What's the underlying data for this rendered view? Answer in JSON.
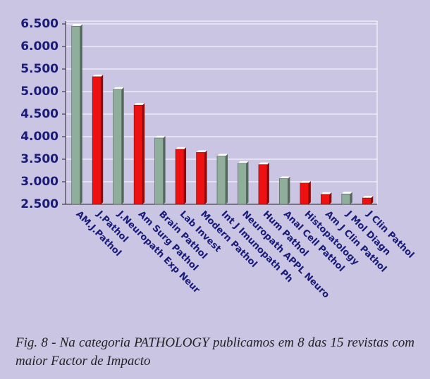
{
  "chart_data": {
    "type": "bar",
    "categories": [
      "AM.J.Pathol",
      "J.Pathol",
      "J.Neuropath Exp Neur",
      "Am Surg Pathol",
      "Brain Pathol",
      "Lab Invest",
      "Modern Pathol",
      "Int J Imunopath Ph",
      "Neuropath APPL Neuro",
      "Hum Pathol",
      "Anal Cell Pathol",
      "Histopatology",
      "Am J Clin Pathol",
      "J Mol Diagn",
      "J Clin Pathol"
    ],
    "values": [
      6.45,
      5.33,
      5.05,
      4.7,
      3.97,
      3.72,
      3.65,
      3.57,
      3.41,
      3.38,
      3.07,
      2.97,
      2.72,
      2.73,
      2.64
    ],
    "colors": [
      "#8fae9c",
      "#ee1111",
      "#8fae9c",
      "#ee1111",
      "#8fae9c",
      "#ee1111",
      "#ee1111",
      "#8fae9c",
      "#8fae9c",
      "#ee1111",
      "#8fae9c",
      "#ee1111",
      "#ee1111",
      "#8fae9c",
      "#ee1111"
    ],
    "ylim": [
      2.5,
      6.5
    ],
    "yticks": [
      {
        "value": 2.5,
        "label": "2.500"
      },
      {
        "value": 3,
        "label": "3.000"
      },
      {
        "value": 3.5,
        "label": "3.500"
      },
      {
        "value": 4,
        "label": "4.000"
      },
      {
        "value": 4.5,
        "label": "4.500"
      },
      {
        "value": 5,
        "label": "5.000"
      },
      {
        "value": 5.5,
        "label": "5.500"
      },
      {
        "value": 6,
        "label": "6.000"
      },
      {
        "value": 6.5,
        "label": "6.500"
      }
    ],
    "grid": true,
    "caption": "Fig. 8 - Na categoria PATHOLOGY publicamos em 8 das 15 revistas com maior Factor de Impacto"
  }
}
